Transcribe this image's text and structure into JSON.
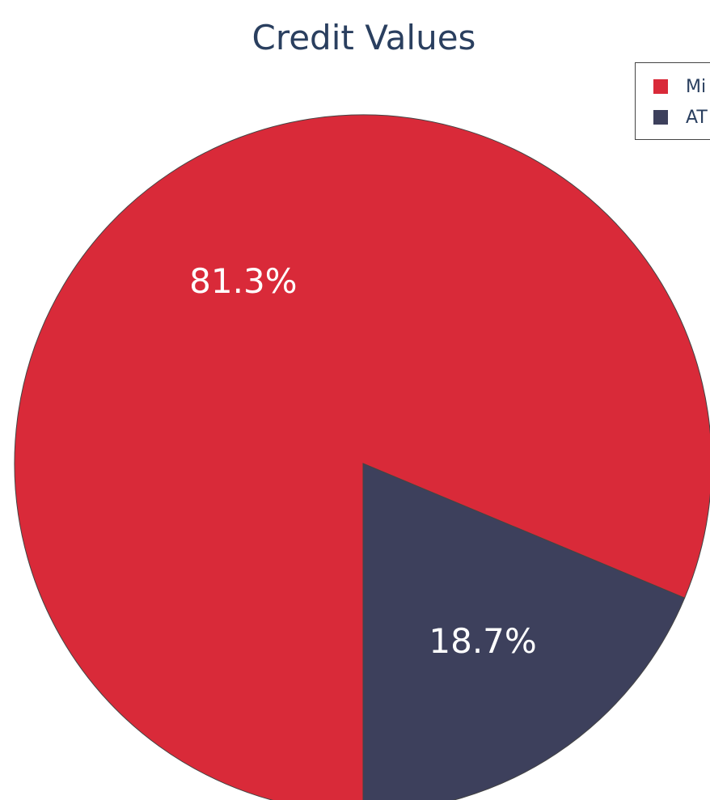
{
  "chart_data": {
    "type": "pie",
    "title": "Credit Values",
    "slices": [
      {
        "label": "Mi",
        "value": 81.3,
        "display": "81.3%",
        "color": "#d92a39"
      },
      {
        "label": "AT",
        "value": 18.7,
        "display": "18.7%",
        "color": "#3d405c"
      }
    ],
    "legend": {
      "position": "top-right"
    },
    "start_angle": "bottom-center",
    "direction": "clockwise"
  }
}
